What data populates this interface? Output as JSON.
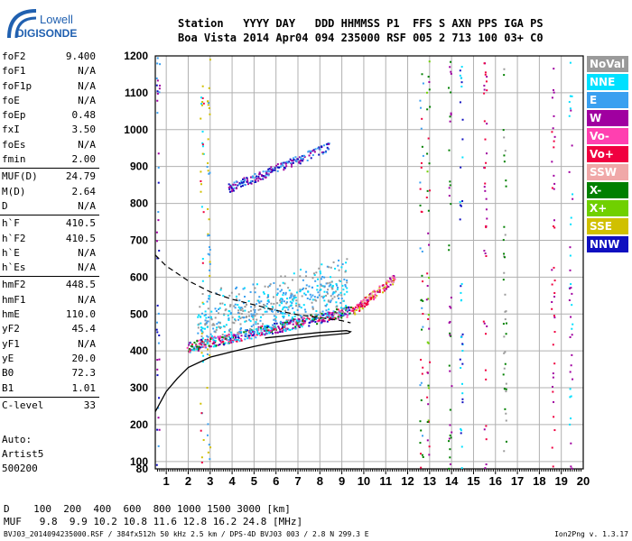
{
  "logo": {
    "line1": "Lowell",
    "line2": "DIGISONDE"
  },
  "header": {
    "line1": "Station   YYYY DAY   DDD HHMMSS P1  FFS S AXN PPS IGA PS",
    "line2": "Boa Vista 2014 Apr04 094 235000 RSF 005 2 713 100 03+ C0"
  },
  "params": [
    {
      "k": "foF2",
      "v": "9.400"
    },
    {
      "k": "foF1",
      "v": "N/A"
    },
    {
      "k": "foF1p",
      "v": "N/A"
    },
    {
      "k": "foE",
      "v": "N/A"
    },
    {
      "k": "foEp",
      "v": "0.48"
    },
    {
      "k": "fxI",
      "v": "3.50"
    },
    {
      "k": "foEs",
      "v": "N/A"
    },
    {
      "k": "fmin",
      "v": "2.00"
    },
    {
      "k": "MUF(D)",
      "v": "24.79",
      "sep": true
    },
    {
      "k": "M(D)",
      "v": "2.64"
    },
    {
      "k": "D",
      "v": "N/A"
    },
    {
      "k": "h`F",
      "v": "410.5",
      "sep": true
    },
    {
      "k": "h`F2",
      "v": "410.5"
    },
    {
      "k": "h`E",
      "v": "N/A"
    },
    {
      "k": "h`Es",
      "v": "N/A"
    },
    {
      "k": "hmF2",
      "v": "448.5",
      "sep": true
    },
    {
      "k": "hmF1",
      "v": "N/A"
    },
    {
      "k": "hmE",
      "v": "110.0"
    },
    {
      "k": "yF2",
      "v": "45.4"
    },
    {
      "k": "yF1",
      "v": "N/A"
    },
    {
      "k": "yE",
      "v": "20.0"
    },
    {
      "k": "B0",
      "v": "72.3"
    },
    {
      "k": "B1",
      "v": "1.01"
    },
    {
      "k": "C-level",
      "v": "33",
      "sep": true
    }
  ],
  "auto": {
    "line1": "Auto:",
    "line2": "Artist5",
    "line3": "500200"
  },
  "legend": [
    {
      "label": "NoVal",
      "color": "#9a9a9a"
    },
    {
      "label": "NNE",
      "color": "#00e0ff"
    },
    {
      "label": "E",
      "color": "#3aa0f0"
    },
    {
      "label": "W",
      "color": "#a000a0"
    },
    {
      "label": "Vo-",
      "color": "#ff40b0"
    },
    {
      "label": "Vo+",
      "color": "#f00040"
    },
    {
      "label": "SSW",
      "color": "#f0a8a8"
    },
    {
      "label": "X-",
      "color": "#008000"
    },
    {
      "label": "X+",
      "color": "#70d000"
    },
    {
      "label": "SSE",
      "color": "#d0c000"
    },
    {
      "label": "NNW",
      "color": "#1010c0"
    }
  ],
  "muf_table": {
    "line1": "D    100  200  400  600  800 1000 1500 3000 [km]",
    "line2": "MUF   9.8  9.9 10.2 10.8 11.6 12.8 16.2 24.8 [MHz]"
  },
  "footer": {
    "left": "BVJ03_2014094235000.RSF / 384fx512h 50 kHz 2.5 km / DPS-4D BVJ03 003 / 2.8 N 299.3 E",
    "right": "Ion2Png v. 1.3.17"
  },
  "chart_data": {
    "type": "scatter",
    "xlim": [
      0.5,
      20
    ],
    "ylim": [
      80,
      1200
    ],
    "xticks": [
      1,
      2,
      3,
      4,
      5,
      6,
      7,
      8,
      9,
      10,
      11,
      12,
      13,
      14,
      15,
      16,
      17,
      18,
      19,
      20
    ],
    "yticks": [
      80,
      100,
      200,
      300,
      400,
      500,
      600,
      700,
      800,
      900,
      1000,
      1100,
      1200
    ],
    "grid": true,
    "profile_solid": [
      [
        0.5,
        235
      ],
      [
        1.0,
        290
      ],
      [
        1.5,
        325
      ],
      [
        2.0,
        355
      ],
      [
        3.0,
        383
      ],
      [
        4.0,
        398
      ],
      [
        5.0,
        412
      ],
      [
        6.0,
        424
      ],
      [
        7.0,
        434
      ],
      [
        8.0,
        441
      ],
      [
        8.6,
        444
      ],
      [
        9.3,
        448
      ],
      [
        9.4,
        452
      ],
      [
        9.2,
        455
      ],
      [
        8.0,
        450
      ],
      [
        7.0,
        444
      ],
      [
        5.5,
        435
      ]
    ],
    "profile_dashed": [
      [
        0.5,
        660
      ],
      [
        1.0,
        630
      ],
      [
        2.0,
        590
      ],
      [
        3.0,
        560
      ],
      [
        4.0,
        540
      ],
      [
        5.0,
        525
      ],
      [
        6.0,
        510
      ],
      [
        7.0,
        498
      ],
      [
        8.0,
        490
      ],
      [
        9.0,
        482
      ],
      [
        9.4,
        476
      ]
    ],
    "clusters": [
      {
        "name": "F2-trace",
        "x0": 1.9,
        "x1": 9.4,
        "y0": 410,
        "y1": 510,
        "spread": 14,
        "n": 520,
        "colors": [
          "#3aa0f0",
          "#1010c0",
          "#a000a0",
          "#f00040",
          "#ff40b0",
          "#008000",
          "#00e0ff"
        ]
      },
      {
        "name": "spread-F",
        "x0": 2.4,
        "x1": 9.2,
        "y0": 460,
        "y1": 555,
        "spread": 45,
        "n": 520,
        "colors": [
          "#00e0ff",
          "#3aa0f0",
          "#9a9a9a"
        ]
      },
      {
        "name": "upper-trace",
        "x0": 9.4,
        "x1": 11.4,
        "y0": 505,
        "y1": 600,
        "spread": 12,
        "n": 140,
        "colors": [
          "#f0a8a8",
          "#ff40b0",
          "#f00040",
          "#a000a0",
          "#d0c000"
        ]
      },
      {
        "name": "multihop",
        "x0": 3.8,
        "x1": 8.4,
        "y0": 842,
        "y1": 955,
        "spread": 12,
        "n": 200,
        "colors": [
          "#1010c0",
          "#a000a0",
          "#3aa0f0"
        ]
      }
    ],
    "noise_columns": [
      {
        "x": 0.6,
        "colors": [
          "#a000a0",
          "#3aa0f0",
          "#1010c0"
        ]
      },
      {
        "x": 2.6,
        "colors": [
          "#d0c000",
          "#f00040",
          "#00e0ff"
        ]
      },
      {
        "x": 2.9,
        "colors": [
          "#d0c000",
          "#3aa0f0"
        ]
      },
      {
        "x": 12.6,
        "colors": [
          "#008000",
          "#f00040",
          "#3aa0f0"
        ]
      },
      {
        "x": 12.9,
        "colors": [
          "#008000",
          "#70d000",
          "#f00040",
          "#a000a0"
        ]
      },
      {
        "x": 13.9,
        "colors": [
          "#008000",
          "#a000a0"
        ]
      },
      {
        "x": 14.4,
        "colors": [
          "#00e0ff",
          "#1010c0"
        ]
      },
      {
        "x": 15.5,
        "colors": [
          "#f00040",
          "#a000a0"
        ]
      },
      {
        "x": 16.4,
        "colors": [
          "#008000",
          "#9a9a9a"
        ]
      },
      {
        "x": 18.6,
        "colors": [
          "#a000a0",
          "#f00040"
        ]
      },
      {
        "x": 19.4,
        "colors": [
          "#00e0ff",
          "#a000a0"
        ]
      }
    ]
  }
}
